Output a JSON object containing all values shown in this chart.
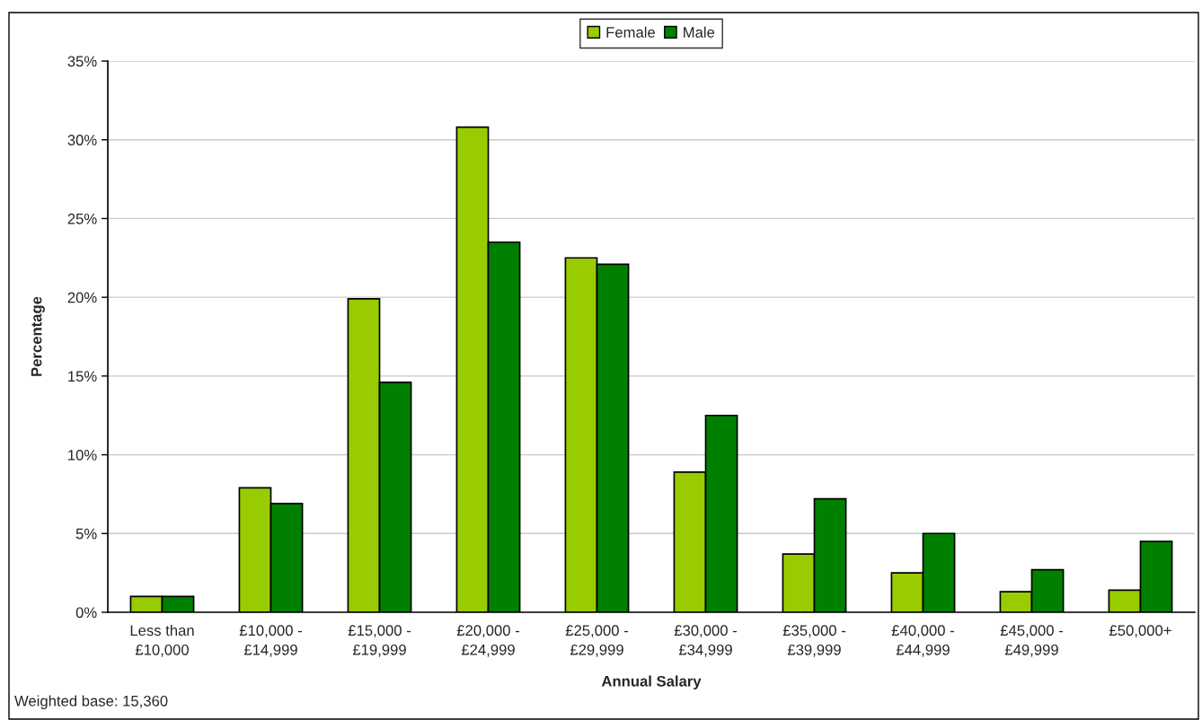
{
  "chart_data": {
    "type": "bar",
    "categories": [
      "Less than\n£10,000",
      "£10,000 -\n£14,999",
      "£15,000 -\n£19,999",
      "£20,000 -\n£24,999",
      "£25,000 -\n£29,999",
      "£30,000 -\n£34,999",
      "£35,000 -\n£39,999",
      "£40,000 -\n£44,999",
      "£45,000 -\n£49,999",
      "£50,000+"
    ],
    "series": [
      {
        "name": "Female",
        "color": "#99cc00",
        "values": [
          1.0,
          7.9,
          19.9,
          30.8,
          22.5,
          8.9,
          3.7,
          2.5,
          1.3,
          1.4
        ]
      },
      {
        "name": "Male",
        "color": "#008000",
        "values": [
          1.0,
          6.9,
          14.6,
          23.5,
          22.1,
          12.5,
          7.2,
          5.0,
          2.7,
          4.5
        ]
      }
    ],
    "xlabel": "Annual Salary",
    "ylabel": "Percentage",
    "ylim": [
      0,
      35
    ],
    "yticks": [
      {
        "value": 0,
        "label": "0%"
      },
      {
        "value": 5,
        "label": "5%"
      },
      {
        "value": 10,
        "label": "10%"
      },
      {
        "value": 15,
        "label": "15%"
      },
      {
        "value": 20,
        "label": "20%"
      },
      {
        "value": 25,
        "label": "25%"
      },
      {
        "value": 30,
        "label": "30%"
      },
      {
        "value": 35,
        "label": "35%"
      }
    ],
    "grid": "y",
    "legend": "top",
    "annotations": [
      "Weighted base: 15,360"
    ]
  }
}
